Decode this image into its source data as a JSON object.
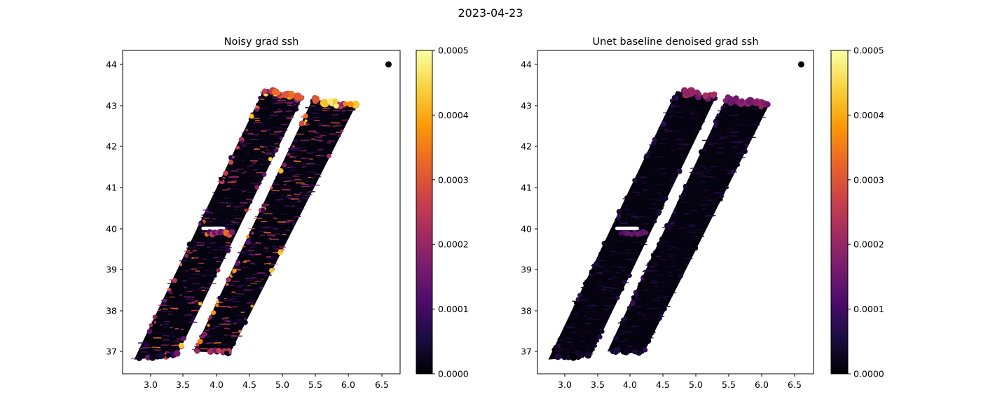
{
  "figure": {
    "suptitle": "2023-04-23"
  },
  "chart_data": [
    {
      "type": "scatter",
      "title": "Noisy grad ssh",
      "xlabel": "",
      "ylabel": "",
      "xlim": [
        2.55,
        6.8
      ],
      "ylim": [
        36.45,
        44.35
      ],
      "xticks": [
        "3.0",
        "3.5",
        "4.0",
        "4.5",
        "5.0",
        "5.5",
        "6.0",
        "6.5"
      ],
      "yticks": [
        "37",
        "38",
        "39",
        "40",
        "41",
        "42",
        "43",
        "44"
      ],
      "colormap": "inferno",
      "colorbar": {
        "min": 0,
        "max": 0.0005,
        "ticks": [
          "0.0000",
          "0.0001",
          "0.0002",
          "0.0003",
          "0.0004",
          "0.0005"
        ]
      },
      "marker_point": {
        "x": 6.6,
        "y": 44.0,
        "color": "#000000"
      },
      "swaths": [
        {
          "name": "",
          "corners": [
            [
              2.75,
              36.8
            ],
            [
              3.4,
              36.9
            ],
            [
              5.3,
              43.2
            ],
            [
              4.7,
              43.35
            ]
          ]
        },
        {
          "name": "",
          "corners": [
            [
              3.65,
              37.0
            ],
            [
              4.2,
              36.95
            ],
            [
              6.1,
              42.98
            ],
            [
              5.45,
              43.15
            ]
          ]
        }
      ],
      "noise_level": 0.32,
      "edge_highlights": 0.55
    },
    {
      "type": "scatter",
      "title": "Unet baseline denoised grad ssh",
      "xlabel": "",
      "ylabel": "",
      "xlim": [
        2.55,
        6.8
      ],
      "ylim": [
        36.45,
        44.35
      ],
      "xticks": [
        "3.0",
        "3.5",
        "4.0",
        "4.5",
        "5.0",
        "5.5",
        "6.0",
        "6.5"
      ],
      "yticks": [
        "37",
        "38",
        "39",
        "40",
        "41",
        "42",
        "43",
        "44"
      ],
      "colormap": "inferno",
      "colorbar": {
        "min": 0,
        "max": 0.0005,
        "ticks": [
          "0.0000",
          "0.0001",
          "0.0002",
          "0.0003",
          "0.0004",
          "0.0005"
        ]
      },
      "marker_point": {
        "x": 6.6,
        "y": 44.0,
        "color": "#000000"
      },
      "swaths": [
        {
          "name": "",
          "corners": [
            [
              2.75,
              36.8
            ],
            [
              3.4,
              36.9
            ],
            [
              5.3,
              43.2
            ],
            [
              4.7,
              43.35
            ]
          ]
        },
        {
          "name": "",
          "corners": [
            [
              3.65,
              37.0
            ],
            [
              4.2,
              36.95
            ],
            [
              6.1,
              42.98
            ],
            [
              5.45,
              43.15
            ]
          ]
        }
      ],
      "noise_level": 0.08,
      "edge_highlights": 0.12
    }
  ],
  "colors": {
    "inferno": [
      "#000004",
      "#1b0c41",
      "#4a0c6b",
      "#781c6d",
      "#a52c60",
      "#cf4446",
      "#ed6925",
      "#fb9b06",
      "#f7d13d",
      "#fcffa4"
    ],
    "background": "#ffffff",
    "axis": "#000000"
  }
}
